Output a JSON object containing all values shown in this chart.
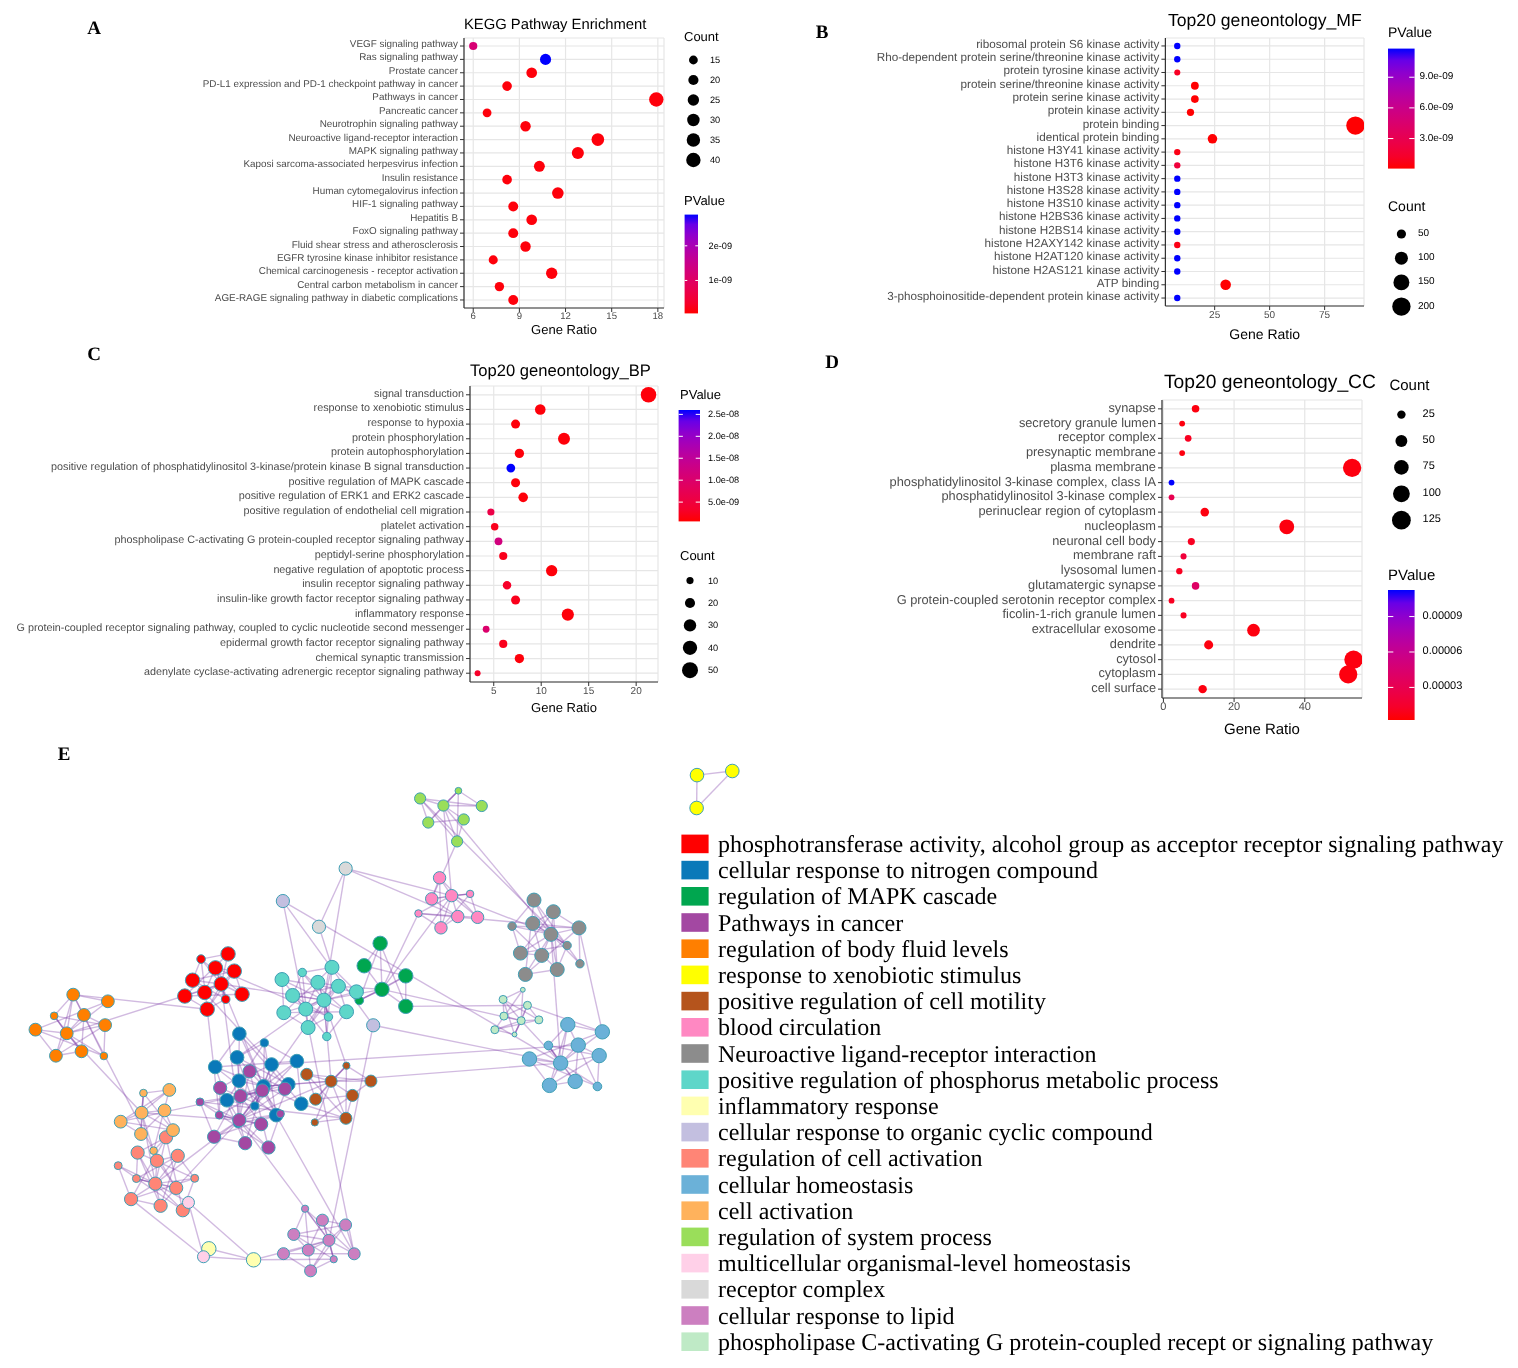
{
  "chart_data": [
    {
      "type": "bubble",
      "annotations": [
        "A"
      ],
      "title": "KEGG Pathway Enrichment",
      "xlabel": "Gene Ratio",
      "orientation": "horizontal",
      "categories": [
        "VEGF signaling pathway",
        "Ras signaling pathway",
        "Prostate cancer",
        "PD-L1 expression and PD-1 checkpoint pathway in cancer",
        "Pathways in cancer",
        "Pancreatic cancer",
        "Neurotrophin signaling pathway",
        "Neuroactive ligand-receptor interaction",
        "MAPK signaling pathway",
        "Kaposi sarcoma-associated herpesvirus infection",
        "Insulin resistance",
        "Human cytomegalovirus infection",
        "HIF-1 signaling pathway",
        "Hepatitis B",
        "FoxO signaling pathway",
        "Fluid shear stress and atherosclerosis",
        "EGFR tyrosine kinase inhibitor resistance",
        "Chemical carcinogenesis - receptor activation",
        "Central carbon metabolism in cancer",
        "AGE-RAGE signaling pathway in diabetic complications"
      ],
      "values": [
        6.0,
        10.7,
        9.8,
        8.2,
        17.9,
        6.9,
        9.4,
        14.1,
        12.8,
        10.3,
        8.2,
        11.5,
        8.6,
        9.8,
        8.6,
        9.4,
        7.3,
        11.1,
        7.7,
        8.6
      ],
      "sizes": [
        13,
        24,
        22,
        18,
        40,
        15,
        21,
        31,
        28,
        23,
        18,
        26,
        19,
        22,
        19,
        21,
        16,
        25,
        17,
        19
      ],
      "cvalues": [
        1.2e-09,
        2.9e-09,
        1e-10,
        1e-10,
        1e-10,
        1e-10,
        1e-10,
        1e-10,
        1e-10,
        1e-10,
        1e-10,
        1e-10,
        1e-10,
        1e-10,
        1e-10,
        1e-10,
        1e-10,
        1e-10,
        1e-10,
        1e-10
      ],
      "size_legend": [
        15,
        20,
        25,
        30,
        35,
        40
      ],
      "legend_title": "Count",
      "clabel": "PValue",
      "clim": [
        5e-11,
        2.9e-09
      ],
      "cticks": [
        {
          "value": 1e-09,
          "label": "1e-09"
        },
        {
          "value": 2e-09,
          "label": "2e-09"
        }
      ],
      "xlim": [
        5.4,
        18.4
      ],
      "xticks": [
        6,
        9,
        12,
        15,
        18
      ],
      "grid": true
    },
    {
      "type": "bubble",
      "annotations": [
        "B"
      ],
      "title": "Top20 geneontology_MF",
      "xlabel": "Gene Ratio",
      "orientation": "horizontal",
      "categories": [
        "ribosomal protein S6 kinase activity",
        "Rho-dependent protein serine/threonine kinase activity",
        "protein tyrosine kinase activity",
        "protein serine/threonine kinase activity",
        "protein serine kinase activity",
        "protein kinase activity",
        "protein binding",
        "identical protein binding",
        "histone H3Y41 kinase activity",
        "histone H3T6 kinase activity",
        "histone H3T3 kinase activity",
        "histone H3S28 kinase activity",
        "histone H3S10 kinase activity",
        "histone H2BS36 kinase activity",
        "histone H2BS14 kinase activity",
        "histone H2AXY142 kinase activity",
        "histone H2AT120 kinase activity",
        "histone H2AS121 kinase activity",
        "ATP binding",
        "3-phosphoinositide-dependent protein kinase activity"
      ],
      "values": [
        8,
        8,
        8,
        16,
        16,
        14,
        89,
        24,
        8,
        8,
        8,
        8,
        8,
        8,
        8,
        8,
        8,
        8,
        30,
        8
      ],
      "sizes": [
        24,
        24,
        22,
        36,
        35,
        31,
        199,
        54,
        24,
        24,
        24,
        24,
        24,
        24,
        24,
        24,
        24,
        24,
        66,
        24
      ],
      "cvalues": [
        1.18e-08,
        1.18e-08,
        1e-09,
        1e-10,
        1e-10,
        1e-10,
        1e-10,
        1e-10,
        5e-10,
        2e-09,
        1.18e-08,
        1.18e-08,
        1.18e-08,
        1.18e-08,
        1.18e-08,
        5e-10,
        1.18e-08,
        1.18e-08,
        1e-10,
        1.18e-08
      ],
      "size_legend": [
        50,
        100,
        150,
        200
      ],
      "legend_title": "Count",
      "clabel": "PValue",
      "clim": [
        6e-11,
        1.18e-08
      ],
      "cticks": [
        {
          "value": 3e-09,
          "label": "3.0e-09"
        },
        {
          "value": 6e-09,
          "label": "6.0e-09"
        },
        {
          "value": 9e-09,
          "label": "9.0e-09"
        }
      ],
      "xlim": [
        2.6,
        92.9
      ],
      "xticks": [
        25,
        50,
        75
      ],
      "grid": true
    },
    {
      "type": "bubble",
      "annotations": [
        "C"
      ],
      "title": "Top20 geneontology_BP",
      "xlabel": "Gene Ratio",
      "orientation": "horizontal",
      "categories": [
        "signal transduction",
        "response to xenobiotic stimulus",
        "response to hypoxia",
        "protein phosphorylation",
        "protein autophosphorylation",
        "positive regulation of phosphatidylinositol 3-kinase/protein kinase B signal transduction",
        "positive regulation of MAPK cascade",
        "positive regulation of ERK1 and ERK2 cascade",
        "positive regulation of endothelial cell migration",
        "platelet activation",
        "phospholipase C-activating G protein-coupled receptor signaling pathway",
        "peptidyl-serine phosphorylation",
        "negative regulation of apoptotic process",
        "insulin receptor signaling pathway",
        "insulin-like growth factor receptor signaling pathway",
        "inflammatory response",
        "G protein-coupled receptor signaling pathway, coupled to cyclic nucleotide second messenger",
        "epidermal growth factor receptor signaling pathway",
        "chemical synaptic transmission",
        "adenylate cyclase-activating adrenergic receptor signaling pathway"
      ],
      "values": [
        21.3,
        9.9,
        7.3,
        12.4,
        7.7,
        6.8,
        7.3,
        8.1,
        4.7,
        5.1,
        5.5,
        6.0,
        11.1,
        6.4,
        7.3,
        12.8,
        4.2,
        6.0,
        7.7,
        3.3
      ],
      "sizes": [
        47,
        22,
        16,
        28,
        17,
        15,
        16,
        18,
        10,
        11,
        12,
        13,
        25,
        14,
        16,
        29,
        9,
        13,
        17,
        7
      ],
      "cvalues": [
        1e-09,
        1e-09,
        1e-09,
        1e-09,
        1e-09,
        2.6e-08,
        1e-09,
        1e-09,
        6e-09,
        2e-09,
        1.2e-08,
        2e-09,
        1e-09,
        3e-09,
        2e-09,
        1e-09,
        1e-08,
        2e-09,
        1e-09,
        3e-09
      ],
      "size_legend": [
        10,
        20,
        30,
        40,
        50
      ],
      "legend_title": "Count",
      "clabel": "PValue",
      "clim": [
        6e-10,
        2.6e-08
      ],
      "cticks": [
        {
          "value": 5e-09,
          "label": "5.0e-09"
        },
        {
          "value": 1e-08,
          "label": "1.0e-08"
        },
        {
          "value": 1.5e-08,
          "label": "1.5e-08"
        },
        {
          "value": 2e-08,
          "label": "2.0e-08"
        },
        {
          "value": 2.5e-08,
          "label": "2.5e-08"
        }
      ],
      "xlim": [
        2.5,
        22.3
      ],
      "xticks": [
        5,
        10,
        15,
        20
      ],
      "grid": true
    },
    {
      "type": "bubble",
      "annotations": [
        "D"
      ],
      "title": "Top20 geneontology_CC",
      "xlabel": "Gene Ratio",
      "orientation": "horizontal",
      "categories": [
        "synapse",
        "secretory granule lumen",
        "receptor complex",
        "presynaptic membrane",
        "plasma membrane",
        "phosphatidylinositol 3-kinase complex, class IA",
        "phosphatidylinositol 3-kinase complex",
        "perinuclear region of cytoplasm",
        "nucleoplasm",
        "neuronal cell body",
        "membrane raft",
        "lysosomal lumen",
        "glutamatergic synapse",
        "G protein-coupled serotonin receptor complex",
        "ficolin-1-rich granule lumen",
        "extracellular exosome",
        "dendrite",
        "cytosol",
        "cytoplasm",
        "cell surface"
      ],
      "values": [
        9.1,
        5.3,
        7.0,
        5.3,
        53.4,
        2.3,
        2.3,
        11.7,
        34.9,
        7.9,
        5.7,
        4.5,
        9.1,
        2.3,
        5.7,
        25.5,
        12.8,
        53.8,
        52.3,
        11.1
      ],
      "sizes": [
        20,
        12,
        16,
        12,
        119,
        12,
        12,
        26,
        78,
        18,
        13,
        14,
        20,
        12,
        13,
        57,
        29,
        120,
        117,
        25
      ],
      "cvalues": [
        5e-06,
        5e-06,
        1e-05,
        5e-06,
        5e-06,
        0.0001125,
        3e-05,
        5e-06,
        5e-06,
        1e-05,
        2e-05,
        1e-05,
        4e-05,
        1e-05,
        1e-05,
        5e-06,
        5e-06,
        5e-06,
        5e-06,
        5e-06
      ],
      "size_legend": [
        25,
        50,
        75,
        100,
        125
      ],
      "legend_title": "Count",
      "clabel": "PValue",
      "clim": [
        2.4e-06,
        0.0001125
      ],
      "cticks": [
        {
          "value": 3e-05,
          "label": "0.00003"
        },
        {
          "value": 6e-05,
          "label": "0.00006"
        },
        {
          "value": 9e-05,
          "label": "0.00009"
        }
      ],
      "xlim": [
        -0.4,
        56.2
      ],
      "xticks": [
        0,
        20,
        40
      ],
      "grid": true
    },
    {
      "type": "other",
      "annotations": [
        "E"
      ],
      "categories": [
        "phosphotransferase activity, alcohol group as acceptor receptor signaling pathway",
        "cellular response to nitrogen compound",
        "regulation of MAPK cascade",
        "Pathways in cancer",
        "regulation of body fluid levels",
        "response to xenobiotic stimulus",
        "positive regulation of cell motility",
        "blood circulation",
        "Neuroactive ligand-receptor interaction",
        "positive regulation of phosphorus metabolic process",
        "inflammatory response",
        "cellular response to organic cyclic compound",
        "regulation of cell activation",
        "cellular homeostasis",
        "cell activation",
        "regulation of system process",
        "multicellular organismal-level homeostasis",
        "receptor complex",
        "cellular response to lipid",
        "phospholipase C-activating G protein-coupled recept or signaling pathway"
      ],
      "colors": [
        "#ff0000",
        "#0a79b9",
        "#00a64f",
        "#a348a2",
        "#ff7f00",
        "#ffff00",
        "#b5541c",
        "#ff88c2",
        "#8c8c8c",
        "#5ed6c9",
        "#ffffb0",
        "#c3bfe0",
        "#ff8576",
        "#6bb1d8",
        "#ffb25c",
        "#9ade5a",
        "#ffd0e8",
        "#d9d9d9",
        "#cc7fc0",
        "#bfeac6"
      ]
    }
  ]
}
